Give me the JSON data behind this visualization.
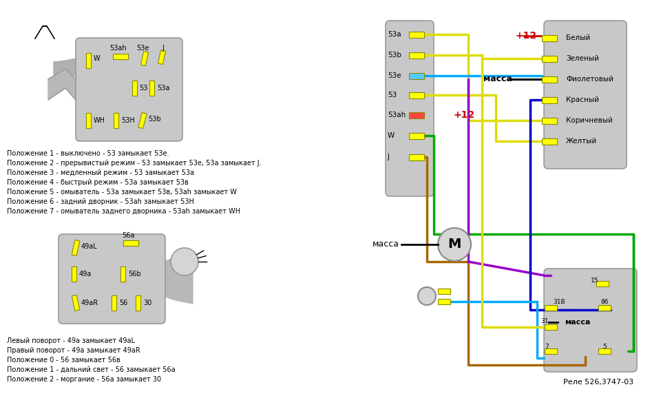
{
  "bg_color": "#ffffff",
  "pos_text": [
    "Положение 1 - выключено - 53 замыкает 53е.",
    "Положение 2 - прерывистый режим - 53 замыкает 53е, 53а замыкает J.",
    "Положение 3 - медленный режим - 53 замыкает 53а",
    "Положение 4 - быстрый режим - 53а замыкает 53в",
    "Положение 5 - омыватель - 53а замыкает 53в, 53ah замыкает W",
    "Положение 6 - задний дворник - 53ah замыкает 53Н",
    "Положение 7 - омыватель заднего дворника - 53ah замыкает WH"
  ],
  "turn_text": [
    "Левый поворот - 49а замыкает 49аL",
    "Правый поворот - 49а замыкает 49аR",
    "Положение 0 - 56 замыкает 56в",
    "Положение 1 - дальний свет - 56 замыкает 56а",
    "Положение 2 - моргание - 56а замыкает 30"
  ],
  "relay_label": "Реле 526,3747-03",
  "wiper_connector_labels": [
    "53a",
    "53b",
    "53e",
    "53",
    "53ah",
    "W",
    "J"
  ],
  "harness_labels": [
    "Белый",
    "Зеленый",
    "Фиолетовый",
    "Красный",
    "Коричневый",
    "Желтый"
  ]
}
